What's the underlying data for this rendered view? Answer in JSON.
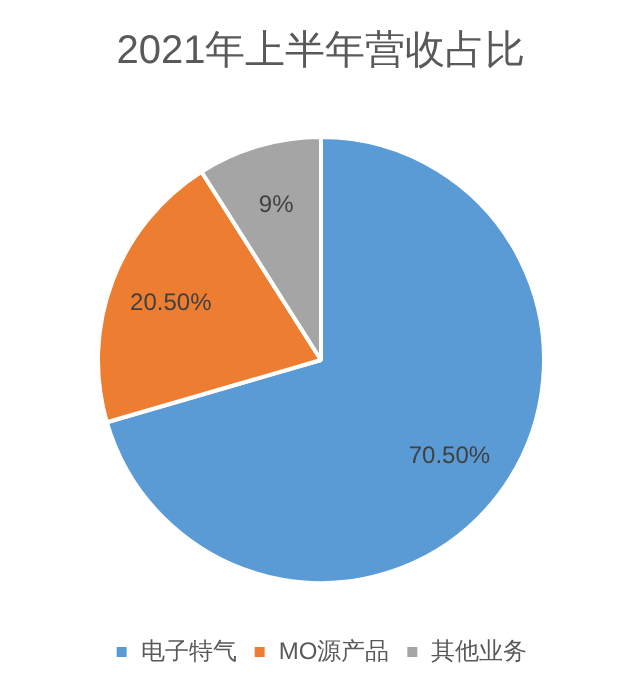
{
  "chart_data": {
    "type": "pie",
    "title": "2021年上半年营收占比",
    "categories": [
      "电子特气",
      "MO源产品",
      "其他业务"
    ],
    "values": [
      70.5,
      20.5,
      9
    ],
    "value_labels": [
      "70.50%",
      "20.50%",
      "9%"
    ],
    "colors": [
      "#5b9bd5",
      "#ed7d31",
      "#a5a5a5"
    ],
    "legend": "bottom"
  }
}
